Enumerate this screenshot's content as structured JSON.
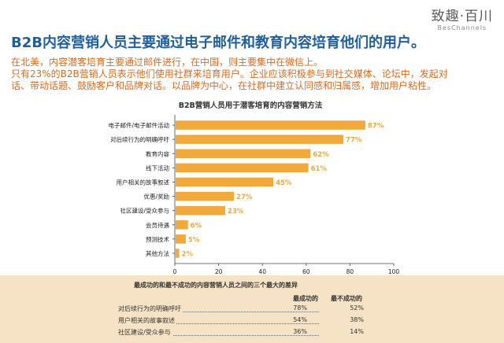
{
  "brand": {
    "name": "致趣·百川",
    "sub": "BesChannels"
  },
  "headline": "B2B内容营销人员主要通过电子邮件和教育内容培育他们的用户。",
  "intro": [
    "在北美，内容潜客培育主要通过邮件进行，在中国，则主要集中在微信上。",
    "只有23%的B2B营销人员表示他们使用社群来培育用户。企业应该积极参与到社交媒体、论坛中，发起对",
    "话、带动话题、鼓励客户和品牌对话。以品牌为中心，在社群中建立认同感和归属感，增加用户粘性。"
  ],
  "colors": {
    "bar": "#f0a93a",
    "title": "#1f5f9e",
    "intro": "#e06a1b",
    "panel": "#f6e3c5"
  },
  "chart_data": {
    "type": "bar",
    "orientation": "horizontal",
    "title": "B2B营销人员用于潜客培育的内容营销方法",
    "categories": [
      "电子邮件/电子邮件活动",
      "对后续行为的明确呼吁",
      "教育内容",
      "线下活动",
      "用户相关的故事叙述",
      "优惠/奖励",
      "社区建设/受众参与",
      "会员待遇",
      "预测技术",
      "其他方法"
    ],
    "values": [
      87,
      77,
      62,
      61,
      45,
      27,
      23,
      6,
      5,
      2
    ],
    "value_suffix": "%",
    "xlim": [
      0,
      100
    ],
    "xticks": [
      0,
      20,
      40,
      60,
      80,
      100
    ],
    "grid": false
  },
  "comparison": {
    "title": "最成功的和最不成功的内容营销人员之间的三个最大的差异",
    "col_success": "最成功的",
    "col_least": "最不成功的",
    "rows": [
      {
        "label": "对后续行为的明确呼吁",
        "success": "78%",
        "least": "52%"
      },
      {
        "label": "用户相关的故事叙述",
        "success": "54%",
        "least": "38%"
      },
      {
        "label": "社区建设/受众参与",
        "success": "36%",
        "least": "14%"
      }
    ]
  }
}
